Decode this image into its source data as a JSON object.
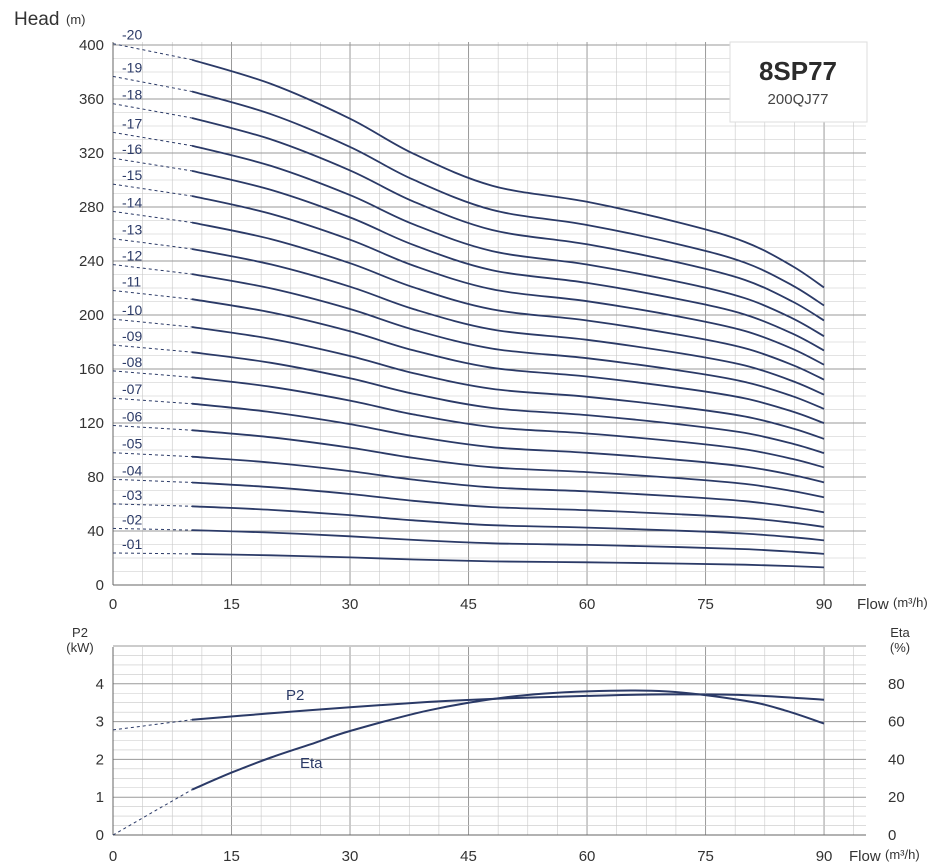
{
  "chart_data": [
    {
      "type": "line",
      "model": "8SP77",
      "model_sub": "200QJ77",
      "ylabel": "Head",
      "ylabel_unit": "(m)",
      "xlabel": "Flow",
      "xlabel_unit": "(m³/h)",
      "xlim": [
        0,
        90
      ],
      "ylim": [
        0,
        400
      ],
      "x_ticks": [
        "0",
        "15",
        "30",
        "45",
        "60",
        "75",
        "90"
      ],
      "y_ticks": [
        "0",
        "40",
        "80",
        "120",
        "160",
        "200",
        "240",
        "280",
        "320",
        "360",
        "400"
      ],
      "grid": true,
      "x": [
        10,
        20,
        30,
        38,
        48,
        60,
        72,
        80,
        86,
        90
      ],
      "shape": [
        0.98,
        0.935,
        0.87,
        0.805,
        0.745,
        0.715,
        0.675,
        0.64,
        0.595,
        0.555
      ],
      "series": [
        {
          "name": "-01",
          "h0": 23.5
        },
        {
          "name": "-02",
          "h0": 41.5
        },
        {
          "name": "-03",
          "h0": 59.5
        },
        {
          "name": "-04",
          "h0": 77.5
        },
        {
          "name": "-05",
          "h0": 97
        },
        {
          "name": "-06",
          "h0": 117
        },
        {
          "name": "-07",
          "h0": 137
        },
        {
          "name": "-08",
          "h0": 157
        },
        {
          "name": "-09",
          "h0": 176
        },
        {
          "name": "-10",
          "h0": 195
        },
        {
          "name": "-11",
          "h0": 216
        },
        {
          "name": "-12",
          "h0": 235
        },
        {
          "name": "-13",
          "h0": 254
        },
        {
          "name": "-14",
          "h0": 274
        },
        {
          "name": "-15",
          "h0": 294
        },
        {
          "name": "-16",
          "h0": 313
        },
        {
          "name": "-17",
          "h0": 332
        },
        {
          "name": "-18",
          "h0": 353
        },
        {
          "name": "-19",
          "h0": 373
        },
        {
          "name": "-20",
          "h0": 397
        }
      ]
    },
    {
      "type": "line",
      "xlabel": "Flow",
      "xlabel_unit": "(m³/h)",
      "xlim": [
        0,
        90
      ],
      "x_ticks": [
        "0",
        "15",
        "30",
        "45",
        "60",
        "75",
        "90"
      ],
      "ylabel_left": "P2",
      "ylabel_left_unit": "(kW)",
      "ylim_left": [
        0,
        5
      ],
      "y_ticks_left": [
        "0",
        "1",
        "2",
        "3",
        "4"
      ],
      "ylabel_right": "Eta",
      "ylabel_right_unit": "(%)",
      "ylim_right": [
        0,
        100
      ],
      "y_ticks_right": [
        "0",
        "20",
        "40",
        "60",
        "80"
      ],
      "grid": true,
      "series": [
        {
          "name": "P2",
          "axis": "left",
          "x": [
            10,
            20,
            30,
            40,
            50,
            60,
            70,
            80,
            90
          ],
          "values": [
            3.05,
            3.22,
            3.38,
            3.52,
            3.62,
            3.68,
            3.72,
            3.7,
            3.58
          ]
        },
        {
          "name": "Eta",
          "axis": "right",
          "x": [
            10,
            15,
            20,
            25,
            30,
            40,
            50,
            60,
            70,
            80,
            85,
            90
          ],
          "values": [
            24,
            33,
            41,
            48,
            55,
            66,
            73,
            76,
            76,
            71,
            66,
            59
          ]
        }
      ]
    }
  ],
  "colors": {
    "curve": "#2b3a67",
    "grid": "#c8c8c8",
    "grid_major": "#9a9a9a"
  }
}
